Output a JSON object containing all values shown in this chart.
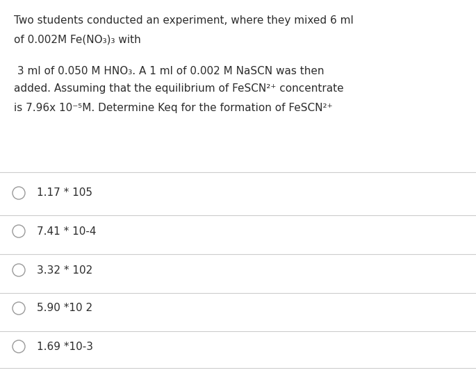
{
  "background_color": "#ffffff",
  "text_color": "#2c2c2c",
  "question_line1": "Two students conducted an experiment, where they mixed 6 ml",
  "question_line2": "of 0.002M Fe(NO₃)₃ with",
  "question_line3": " 3 ml of 0.050 M HNO₃. A 1 ml of 0.002 M NaSCN was then",
  "question_line4": "added. Assuming that the equilibrium of FeSCN²⁺ concentrate",
  "question_line5": "is 7.96x 10⁻⁵M. Determine Keq for the formation of FeSCN²⁺",
  "choices": [
    "1.17 * 105",
    "7.41 * 10-4",
    "3.32 * 102",
    "5.90 *10 2",
    "1.69 *10-3"
  ],
  "divider_color": "#cccccc",
  "circle_color": "#9a9a9a",
  "font_size_question": 11.0,
  "font_size_choices": 11.0,
  "fig_width": 6.85,
  "fig_height": 5.53
}
